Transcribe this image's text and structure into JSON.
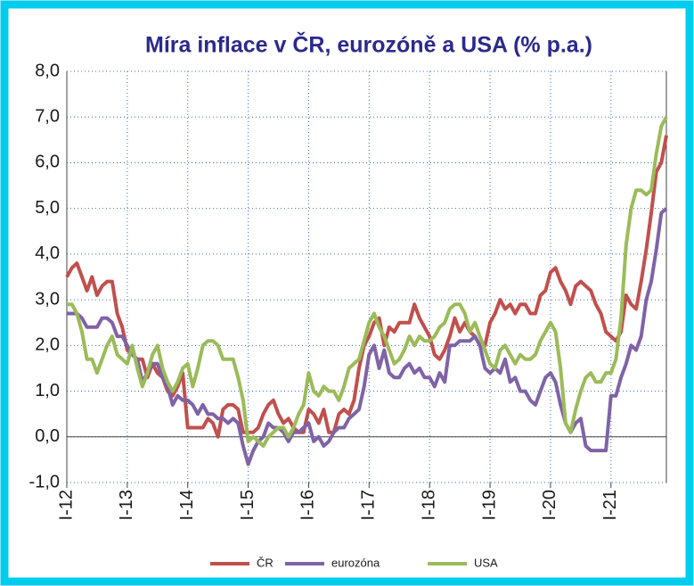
{
  "chart_data": {
    "type": "line",
    "title": "Míra inflace v ČR, eurozóně a USA (% p.a.)",
    "categories": [
      "I-12",
      null,
      null,
      null,
      null,
      null,
      null,
      null,
      null,
      null,
      null,
      null,
      "I-13",
      null,
      null,
      null,
      null,
      null,
      null,
      null,
      null,
      null,
      null,
      null,
      "I-14",
      null,
      null,
      null,
      null,
      null,
      null,
      null,
      null,
      null,
      null,
      null,
      "I-15",
      null,
      null,
      null,
      null,
      null,
      null,
      null,
      null,
      null,
      null,
      null,
      "I-16",
      null,
      null,
      null,
      null,
      null,
      null,
      null,
      null,
      null,
      null,
      null,
      "I-17",
      null,
      null,
      null,
      null,
      null,
      null,
      null,
      null,
      null,
      null,
      null,
      "I-18",
      null,
      null,
      null,
      null,
      null,
      null,
      null,
      null,
      null,
      null,
      null,
      "I-19",
      null,
      null,
      null,
      null,
      null,
      null,
      null,
      null,
      null,
      null,
      null,
      "I-20",
      null,
      null,
      null,
      null,
      null,
      null,
      null,
      null,
      null,
      null,
      null,
      "I-21",
      null,
      null,
      null,
      null,
      null,
      null,
      null,
      null,
      null,
      null,
      null
    ],
    "series": [
      {
        "name": "ČR",
        "color": "#c0504d",
        "values": [
          3.5,
          3.7,
          3.8,
          3.5,
          3.2,
          3.5,
          3.1,
          3.3,
          3.4,
          3.4,
          2.7,
          2.4,
          1.9,
          1.8,
          1.7,
          1.7,
          1.3,
          1.6,
          1.4,
          1.3,
          1.0,
          0.9,
          1.1,
          1.4,
          0.2,
          0.2,
          0.2,
          0.2,
          0.4,
          0.3,
          0.0,
          0.6,
          0.7,
          0.7,
          0.6,
          0.1,
          0.1,
          0.1,
          0.2,
          0.5,
          0.7,
          0.8,
          0.5,
          0.3,
          0.4,
          0.2,
          0.1,
          0.1,
          0.6,
          0.5,
          0.3,
          0.6,
          0.1,
          0.1,
          0.5,
          0.6,
          0.5,
          0.8,
          1.5,
          2.0,
          2.2,
          2.5,
          2.6,
          2.0,
          2.4,
          2.3,
          2.5,
          2.5,
          2.5,
          2.9,
          2.6,
          2.4,
          2.2,
          1.8,
          1.7,
          1.9,
          2.2,
          2.6,
          2.3,
          2.5,
          2.3,
          2.2,
          2.0,
          2.0,
          2.5,
          2.7,
          3.0,
          2.8,
          2.9,
          2.7,
          2.9,
          2.9,
          2.7,
          2.7,
          3.1,
          3.2,
          3.6,
          3.7,
          3.4,
          3.2,
          2.9,
          3.3,
          3.4,
          3.3,
          3.2,
          2.9,
          2.7,
          2.3,
          2.2,
          2.1,
          2.3,
          3.1,
          2.9,
          2.8,
          3.4,
          4.1,
          4.9,
          5.8,
          6.0,
          6.6
        ]
      },
      {
        "name": "eurozóna",
        "color": "#7f63a6",
        "values": [
          2.7,
          2.7,
          2.7,
          2.6,
          2.4,
          2.4,
          2.4,
          2.6,
          2.6,
          2.5,
          2.2,
          2.2,
          2.0,
          1.8,
          1.7,
          1.2,
          1.4,
          1.6,
          1.6,
          1.3,
          1.1,
          0.7,
          0.9,
          0.8,
          0.8,
          0.7,
          0.5,
          0.7,
          0.5,
          0.5,
          0.4,
          0.4,
          0.3,
          0.4,
          0.3,
          -0.2,
          -0.6,
          -0.3,
          -0.1,
          0.0,
          0.3,
          0.2,
          0.2,
          0.1,
          -0.1,
          0.1,
          0.1,
          0.2,
          0.3,
          -0.1,
          0.0,
          -0.2,
          -0.1,
          0.1,
          0.2,
          0.2,
          0.4,
          0.5,
          0.6,
          1.1,
          1.8,
          2.0,
          1.5,
          1.9,
          1.4,
          1.3,
          1.3,
          1.5,
          1.6,
          1.4,
          1.5,
          1.3,
          1.3,
          1.1,
          1.4,
          1.2,
          2.0,
          2.0,
          2.1,
          2.1,
          2.1,
          2.2,
          2.0,
          1.5,
          1.4,
          1.5,
          1.4,
          1.7,
          1.2,
          1.3,
          1.0,
          1.0,
          0.8,
          0.7,
          1.0,
          1.3,
          1.4,
          1.2,
          0.7,
          0.3,
          0.1,
          0.3,
          0.4,
          -0.2,
          -0.3,
          -0.3,
          -0.3,
          -0.3,
          0.9,
          0.9,
          1.3,
          1.6,
          2.0,
          1.9,
          2.2,
          3.0,
          3.4,
          4.1,
          4.9,
          5.0
        ]
      },
      {
        "name": "USA",
        "color": "#9bbb59",
        "values": [
          2.9,
          2.9,
          2.7,
          2.3,
          1.7,
          1.7,
          1.4,
          1.7,
          2.0,
          2.2,
          1.8,
          1.7,
          1.6,
          2.0,
          1.5,
          1.1,
          1.4,
          1.8,
          2.0,
          1.5,
          1.2,
          1.0,
          1.2,
          1.5,
          1.6,
          1.1,
          1.5,
          2.0,
          2.1,
          2.1,
          2.0,
          1.7,
          1.7,
          1.7,
          1.3,
          0.8,
          -0.1,
          0.0,
          -0.1,
          -0.2,
          0.0,
          0.1,
          0.2,
          0.2,
          0.0,
          0.2,
          0.5,
          0.7,
          1.4,
          1.0,
          0.9,
          1.1,
          1.0,
          1.0,
          0.8,
          1.1,
          1.5,
          1.6,
          1.7,
          2.1,
          2.5,
          2.7,
          2.4,
          2.2,
          1.9,
          1.6,
          1.7,
          1.9,
          2.2,
          2.0,
          2.2,
          2.1,
          2.1,
          2.2,
          2.4,
          2.5,
          2.8,
          2.9,
          2.9,
          2.7,
          2.3,
          2.5,
          2.2,
          1.9,
          1.6,
          1.5,
          1.9,
          2.0,
          1.8,
          1.6,
          1.8,
          1.7,
          1.7,
          1.8,
          2.1,
          2.3,
          2.5,
          2.3,
          1.5,
          0.3,
          0.1,
          0.6,
          1.0,
          1.3,
          1.4,
          1.2,
          1.2,
          1.4,
          1.4,
          1.7,
          2.6,
          4.2,
          5.0,
          5.4,
          5.4,
          5.3,
          5.4,
          6.2,
          6.8,
          7.0
        ]
      }
    ],
    "ylim": [
      -1,
      8
    ],
    "yticks": [
      {
        "value": -1,
        "label": "-1,0"
      },
      {
        "value": 0,
        "label": "0,0"
      },
      {
        "value": 1,
        "label": "1,0"
      },
      {
        "value": 2,
        "label": "2,0"
      },
      {
        "value": 3,
        "label": "3,0"
      },
      {
        "value": 4,
        "label": "4,0"
      },
      {
        "value": 5,
        "label": "5,0"
      },
      {
        "value": 6,
        "label": "6,0"
      },
      {
        "value": 7,
        "label": "7,0"
      },
      {
        "value": 8,
        "label": "8,0"
      }
    ],
    "grid": true,
    "legend": "bottom"
  }
}
